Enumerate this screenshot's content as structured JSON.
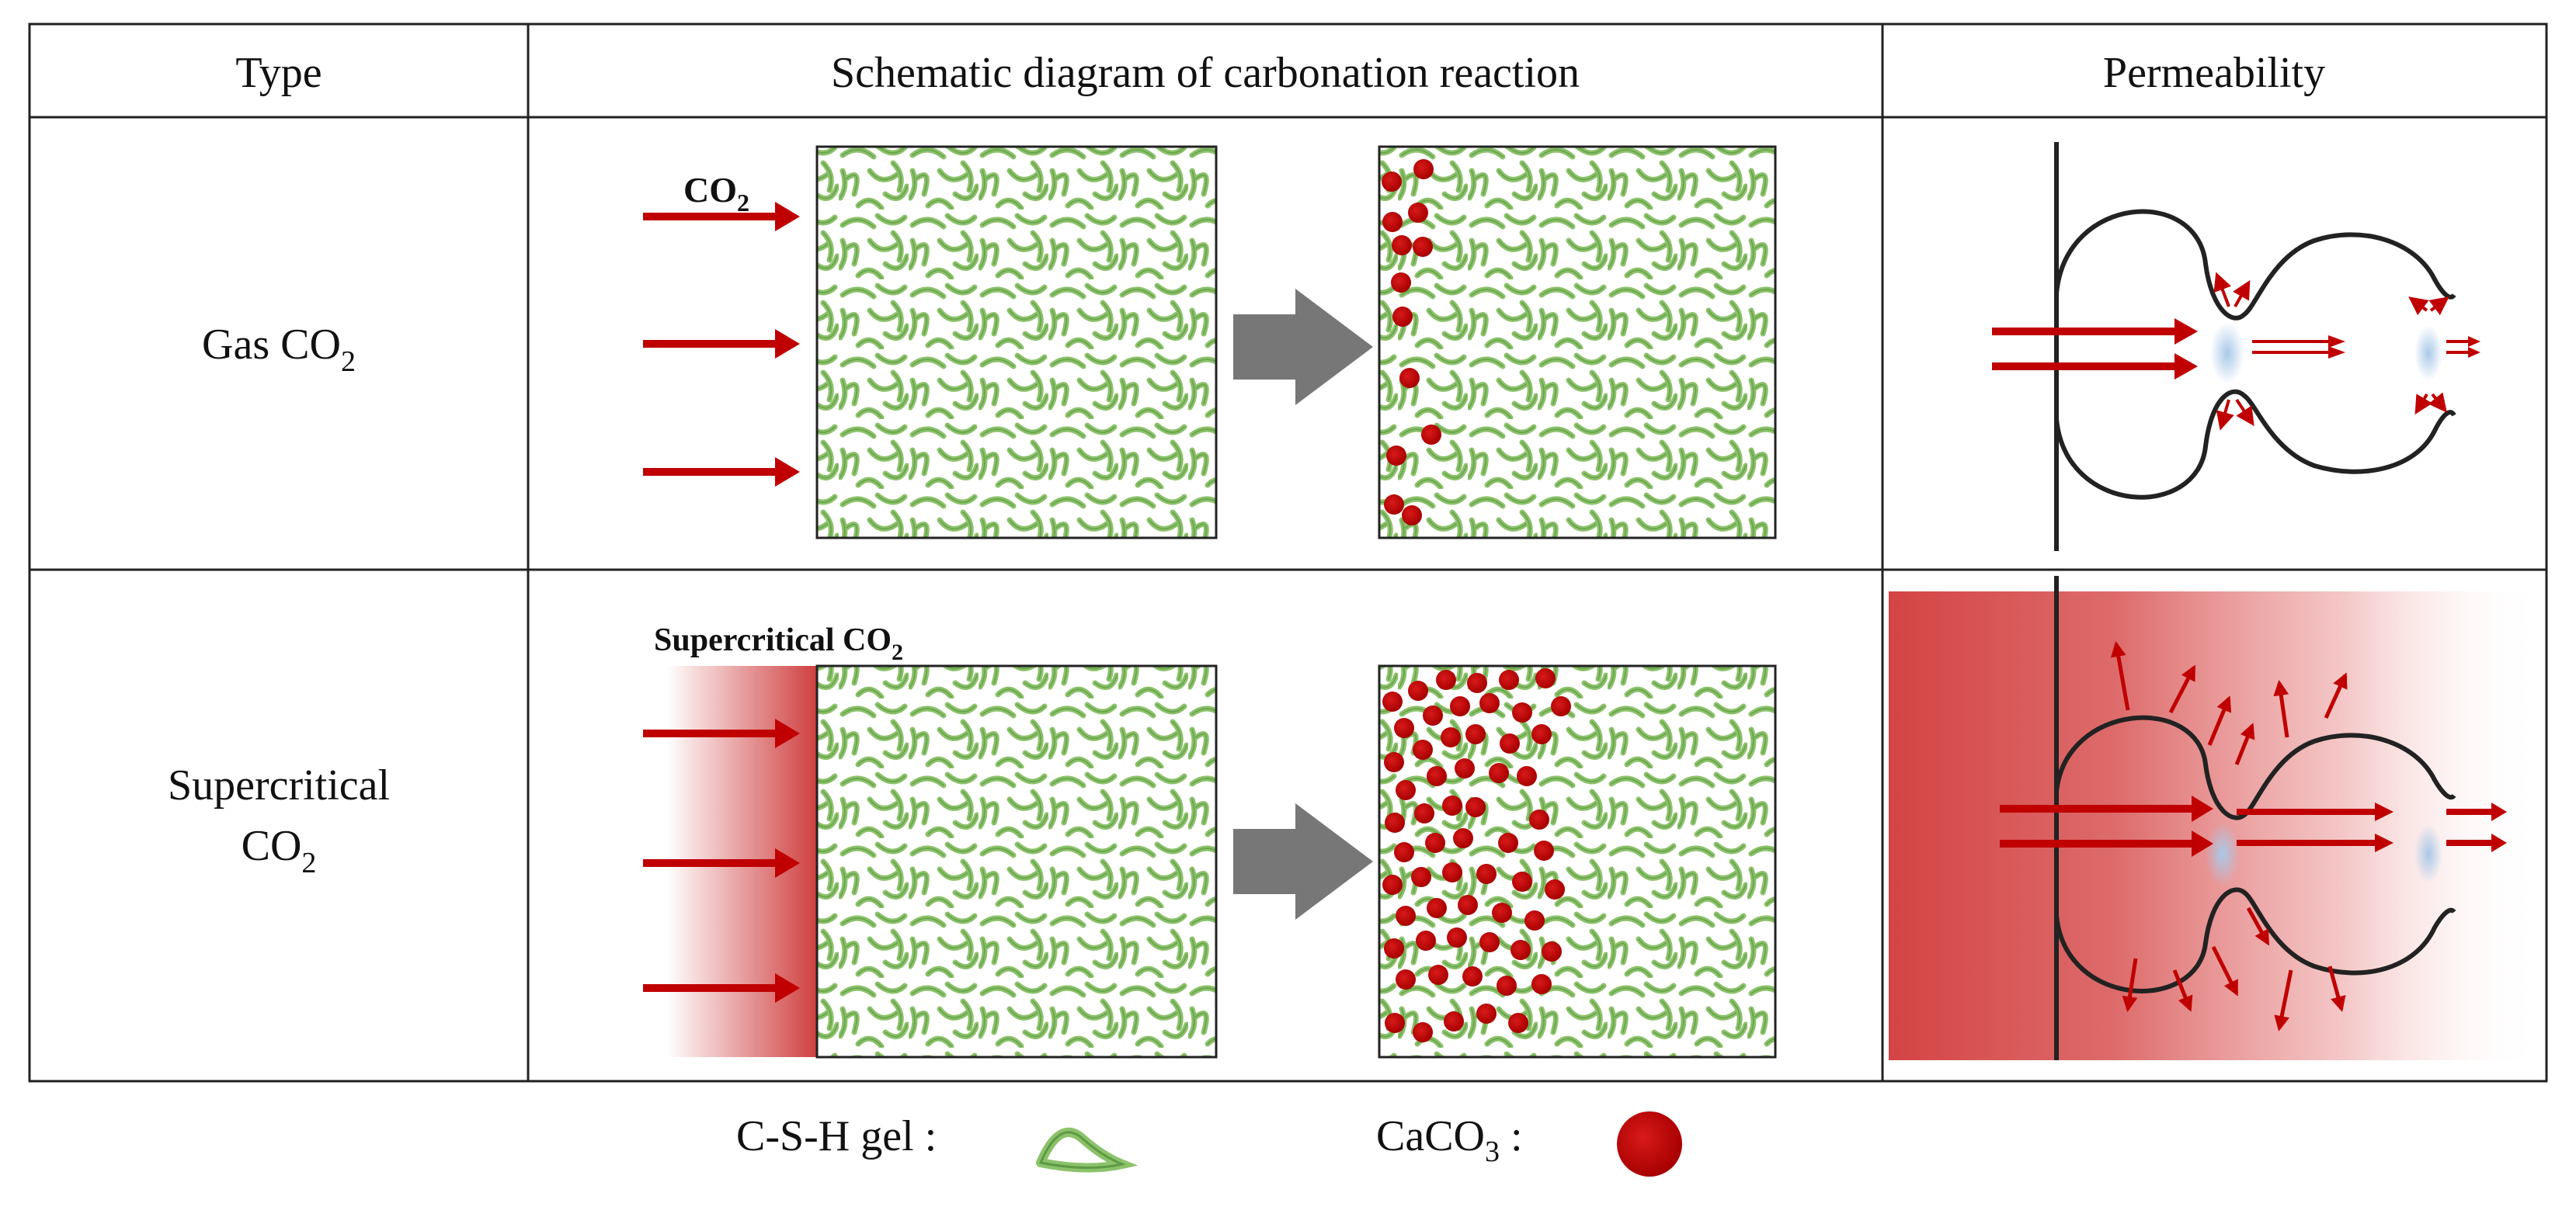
{
  "header": {
    "col_type": "Type",
    "col_schematic": "Schematic diagram of carbonation reaction",
    "col_permeability": "Permeability"
  },
  "rows": [
    {
      "type_main": "Gas CO",
      "type_sub": "2",
      "arrow_label_main": "CO",
      "arrow_label_sub": "2"
    },
    {
      "type_line1": "Supercritical",
      "type_line2_main": "CO",
      "type_line2_sub": "2",
      "arrow_label_main": "Supercritical CO",
      "arrow_label_sub": "2"
    }
  ],
  "legend": {
    "csh_label": "C-S-H gel :",
    "caco3_label_main": "CaCO",
    "caco3_label_sub": "3",
    "caco3_label_colon": " :"
  },
  "colors": {
    "gel_green": "#8cc26a",
    "gel_dark": "#5e9a45",
    "caco3_red": "#c00000",
    "arrow_red": "#c00000",
    "process_arrow_gray": "#777777",
    "grid_line": "#222222",
    "pore_blue": "#a9c9e8"
  },
  "icons": {
    "csh_gel": "c-s-h-gel-strand-icon",
    "caco3": "caco3-particle-icon",
    "process_arrow": "process-arrow-icon"
  }
}
